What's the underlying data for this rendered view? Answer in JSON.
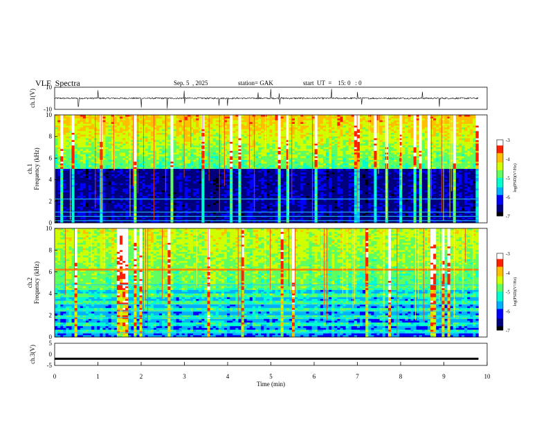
{
  "header": {
    "title": "VLF  Spectra",
    "date": "Sep. 5  , 2025",
    "station": "station= GAK",
    "start_ut": "start  UT  =    15: 0   : 0"
  },
  "colors": {
    "spectrogram_background": "#000033",
    "waveform": "#000000",
    "colormap": [
      "#000000",
      "#00007f",
      "#0000ff",
      "#00b0ff",
      "#00ffd0",
      "#60ff60",
      "#d0ff00",
      "#ffc000",
      "#ff2000",
      "#ffffff"
    ]
  },
  "chart_data": [
    {
      "type": "line",
      "name": "ch1-waveform",
      "ylabel": "ch.1(V)",
      "ylim": [
        -10,
        10
      ],
      "yticks": [
        "10",
        "-10"
      ],
      "xlim": [
        0,
        10
      ],
      "trace": {
        "baseline": 0,
        "duration_min": 9.8,
        "spike_times_min": [
          0.55,
          1.0,
          2.0,
          2.6,
          3.0,
          3.8,
          4.0,
          4.7,
          5.0,
          5.2,
          6.4,
          7.0,
          7.1,
          8.5,
          8.9
        ]
      }
    },
    {
      "type": "heatmap",
      "name": "ch1-spectrogram",
      "ylabel": "ch.1\nFrequency  (kHz)",
      "ylim": [
        0,
        10
      ],
      "yticks": [
        "0",
        "2",
        "4",
        "6",
        "8",
        "10"
      ],
      "xlim": [
        0,
        10
      ],
      "duration_min": 9.8,
      "colorbar": {
        "label": "log(PSD)(V²/Hz)",
        "range": [
          -7,
          -3
        ],
        "ticks": [
          "-3",
          "-4",
          "-5",
          "-6",
          "-7"
        ]
      },
      "description_bands": {
        "quiet_below_khz": 5.0,
        "line_near_khz": [
          0.2,
          0.6,
          1.0,
          2.2
        ],
        "active_above_khz": 5.0
      }
    },
    {
      "type": "heatmap",
      "name": "ch2-spectrogram",
      "ylabel": "ch.2\nFrequency  (kHz)",
      "ylim": [
        0,
        10
      ],
      "yticks": [
        "0",
        "2",
        "4",
        "6",
        "8",
        "10"
      ],
      "xlim": [
        0,
        10
      ],
      "duration_min": 9.8,
      "colorbar": {
        "label": "log(PSD)(V²/Hz)",
        "range": [
          -7,
          -3
        ],
        "ticks": [
          "-3",
          "-4",
          "-5",
          "-6",
          "-7"
        ]
      },
      "description_bands": {
        "strong_line_khz": 6.2,
        "line_near_khz": [
          0.4,
          1.8,
          2.4,
          3.0,
          4.8
        ]
      }
    },
    {
      "type": "line",
      "name": "ch3-waveform",
      "ylabel": "ch.3(V)",
      "ylim": [
        -5,
        5
      ],
      "yticks": [
        "5",
        "0",
        "-5"
      ],
      "xlim": [
        0,
        10
      ],
      "xlabel": "Time  (min)",
      "xticks": [
        "0",
        "1",
        "2",
        "3",
        "4",
        "5",
        "6",
        "7",
        "8",
        "9",
        "10"
      ],
      "trace": {
        "level": -2.0,
        "duration_min": 9.8
      }
    }
  ]
}
